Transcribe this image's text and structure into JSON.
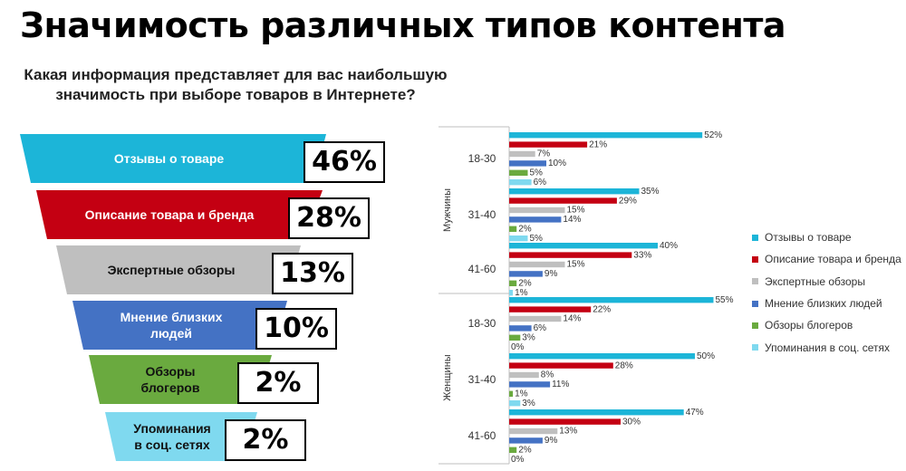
{
  "title": "Значимость различных типов контента",
  "question": {
    "line1": "Какая информация представляет для вас наибольшую",
    "line2": "значимость при выборе товаров в Интернете?"
  },
  "funnel": [
    {
      "label_lines": [
        "Отзывы о товаре"
      ],
      "value": 46,
      "value_label": "46%",
      "color": "#1cb5d8",
      "text_color": "#ffffff"
    },
    {
      "label_lines": [
        "Описание товара и бренда"
      ],
      "value": 28,
      "value_label": "28%",
      "color": "#c40012",
      "text_color": "#ffffff"
    },
    {
      "label_lines": [
        "Экспертные обзоры"
      ],
      "value": 13,
      "value_label": "13%",
      "color": "#bfbfbf",
      "text_color": "#111111"
    },
    {
      "label_lines": [
        "Мнение близких",
        "людей"
      ],
      "value": 10,
      "value_label": "10%",
      "color": "#4472c4",
      "text_color": "#ffffff"
    },
    {
      "label_lines": [
        "Обзоры",
        "блогеров"
      ],
      "value": 2,
      "value_label": "2%",
      "color": "#6aaa3f",
      "text_color": "#111111"
    },
    {
      "label_lines": [
        "Упоминания",
        "в соц. сетях"
      ],
      "value": 2,
      "value_label": "2%",
      "color": "#7fd9ef",
      "text_color": "#111111"
    }
  ],
  "chart_data": {
    "type": "bar",
    "orientation": "horizontal",
    "series": [
      {
        "name": "Отзывы о товаре",
        "color": "#1cb5d8"
      },
      {
        "name": "Описание товара и бренда",
        "color": "#c40012"
      },
      {
        "name": "Экспертные обзоры",
        "color": "#bfbfbf"
      },
      {
        "name": "Мнение близких людей",
        "color": "#4472c4"
      },
      {
        "name": "Обзоры блогеров",
        "color": "#6aaa3f"
      },
      {
        "name": "Упоминания в соц. сетях",
        "color": "#7fd9ef"
      }
    ],
    "groups": [
      {
        "gender": "Мужчины",
        "ages": [
          {
            "age": "18-30",
            "values": [
              52,
              21,
              7,
              10,
              5,
              6
            ]
          },
          {
            "age": "31-40",
            "values": [
              35,
              29,
              15,
              14,
              2,
              5
            ]
          },
          {
            "age": "41-60",
            "values": [
              40,
              33,
              15,
              9,
              2,
              1
            ]
          }
        ]
      },
      {
        "gender": "Женщины",
        "ages": [
          {
            "age": "18-30",
            "values": [
              55,
              22,
              14,
              6,
              3,
              0
            ]
          },
          {
            "age": "31-40",
            "values": [
              50,
              28,
              8,
              11,
              1,
              3
            ]
          },
          {
            "age": "41-60",
            "values": [
              47,
              30,
              13,
              9,
              2,
              0
            ]
          }
        ]
      }
    ],
    "value_suffix": "%",
    "legend_position": "right",
    "xlim": [
      0,
      60
    ]
  }
}
